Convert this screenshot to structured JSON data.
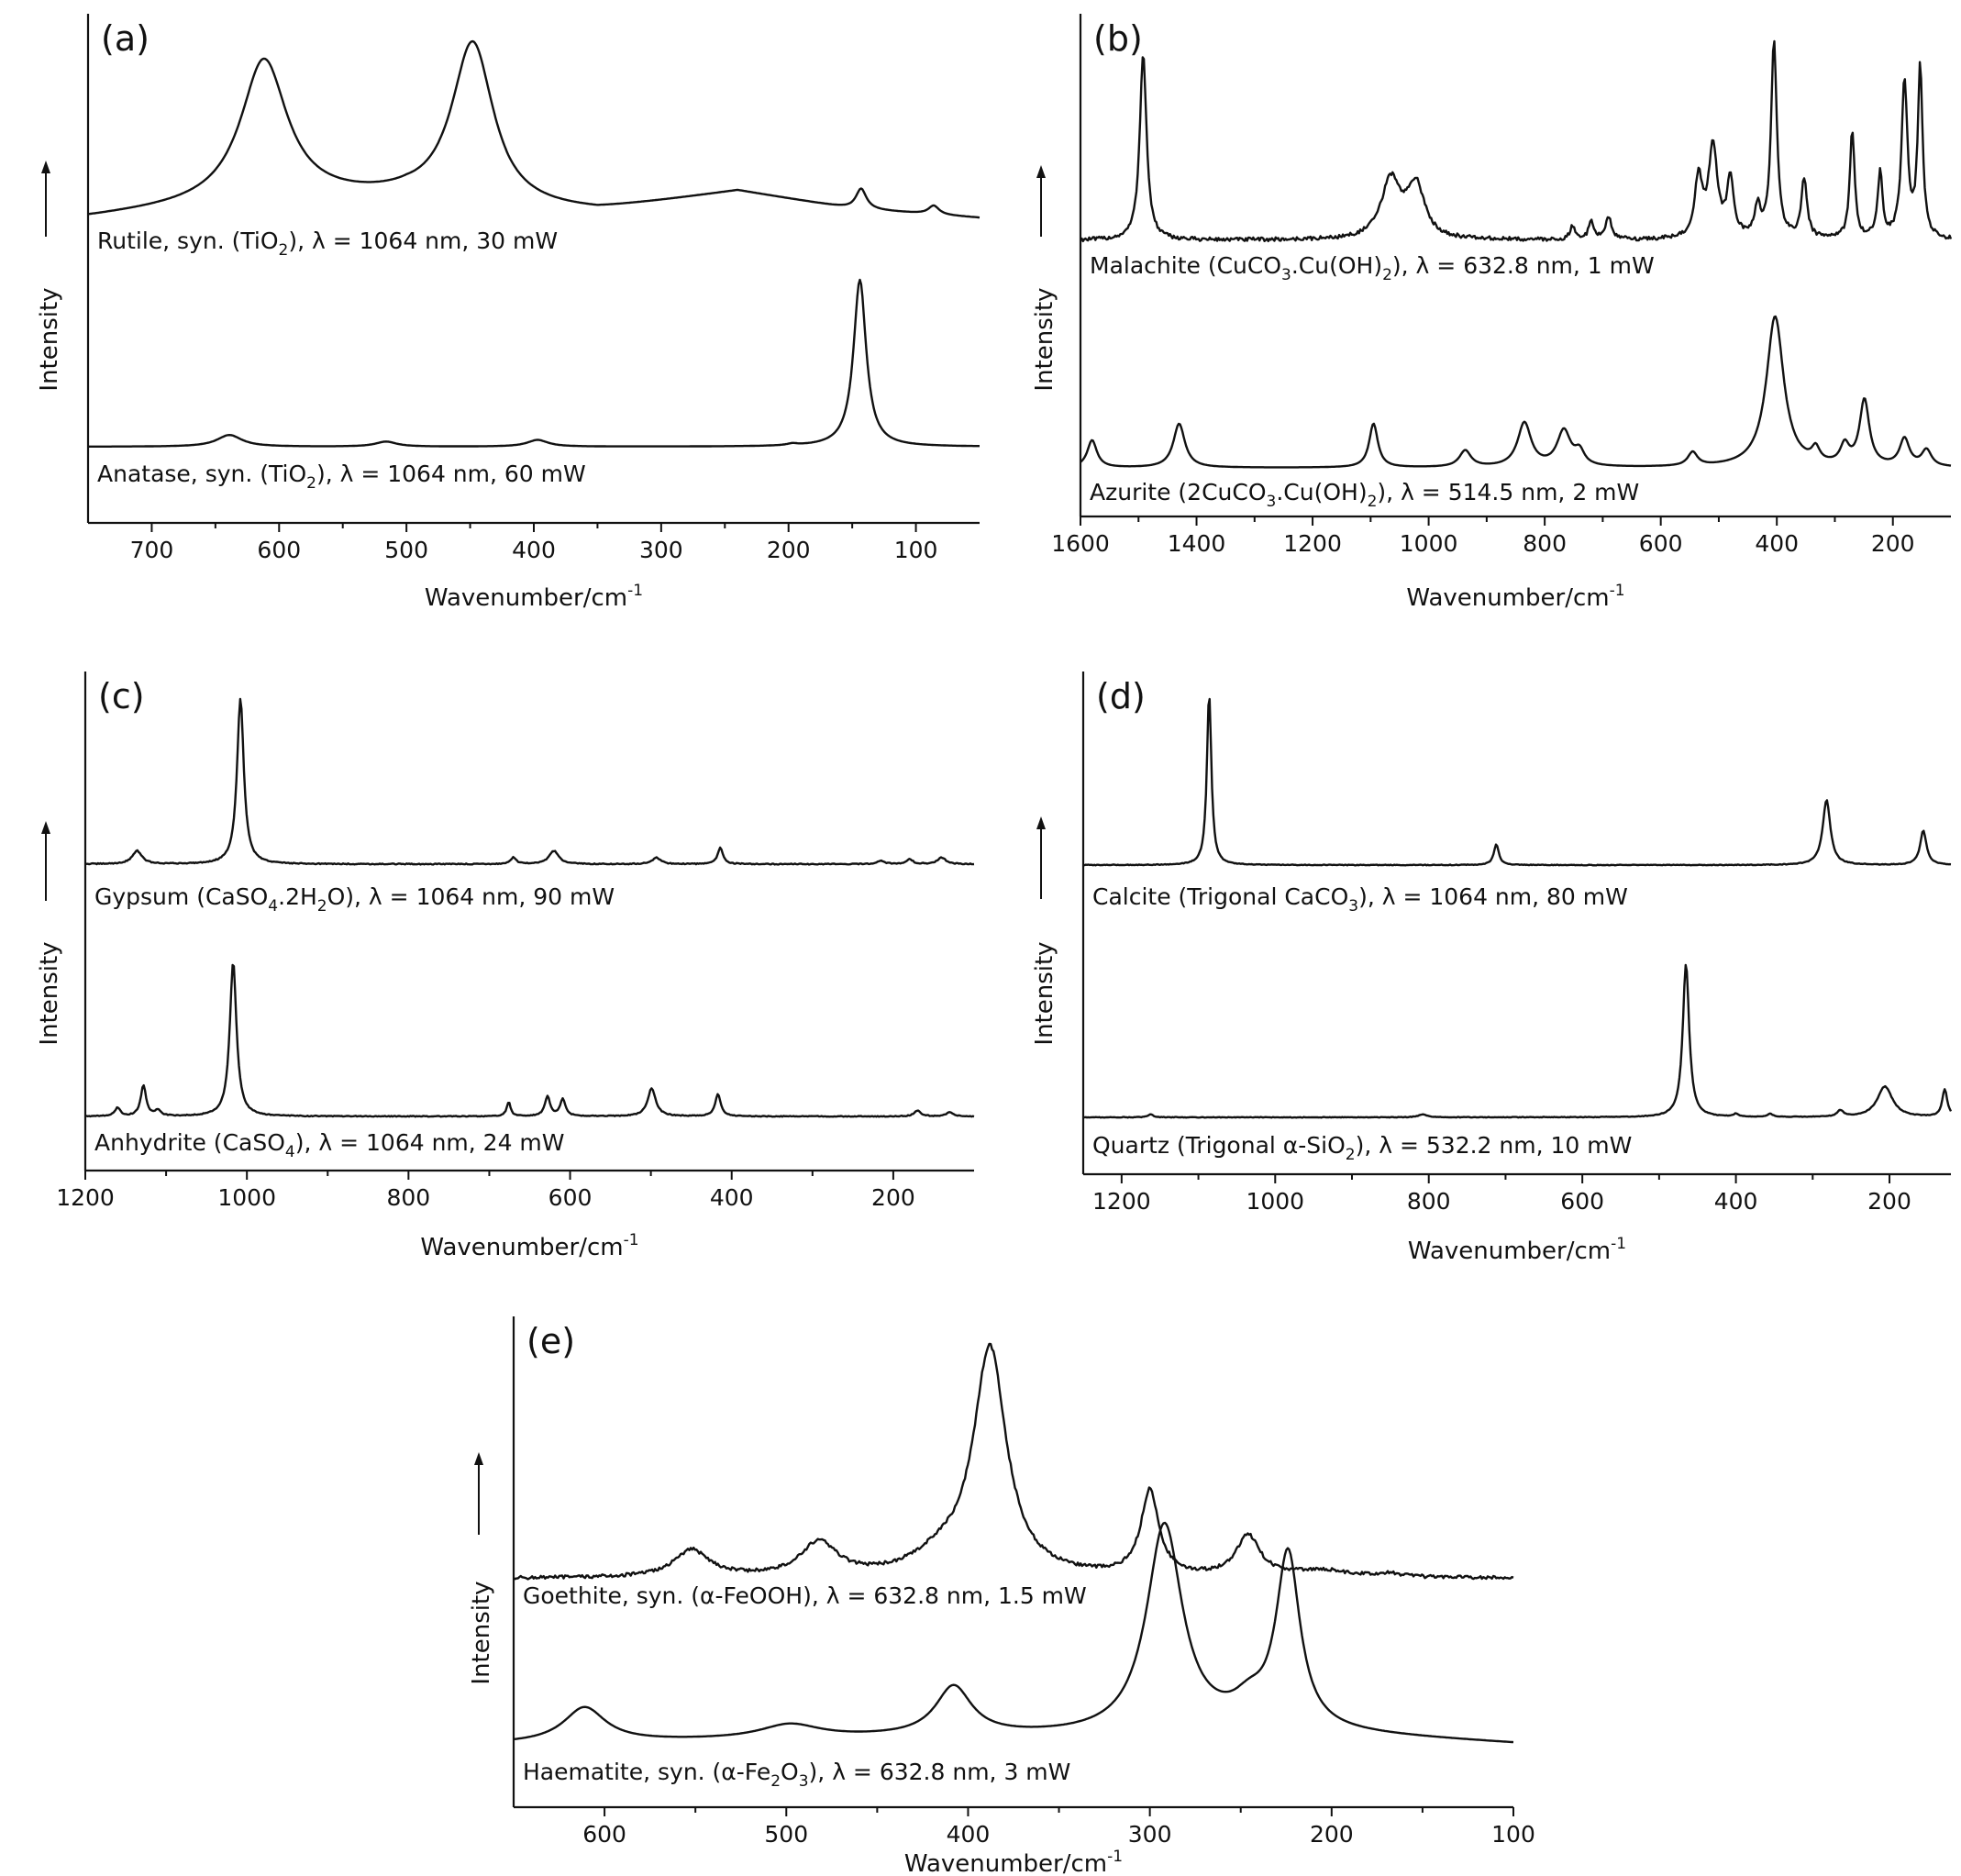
{
  "chart_data": [
    {
      "panel": "(a)",
      "type": "line",
      "xlabel": "Wavenumber/cm",
      "xlabel_sup": "-1",
      "ylabel": "Intensity",
      "xlim": [
        750,
        50
      ],
      "xticks": [
        700,
        600,
        500,
        400,
        300,
        200,
        100
      ],
      "grid": false,
      "series": [
        {
          "label_parts": [
            {
              "t": "Rutile, syn. (TiO"
            },
            {
              "t": "2",
              "s": "sub"
            },
            {
              "t": "), λ = 1064 nm, 30 mW"
            }
          ],
          "baseline": 0.68,
          "noise": 0,
          "background": [
            [
              750,
              0.0
            ],
            [
              600,
              0.06
            ],
            [
              500,
              0.06
            ],
            [
              420,
              0.02
            ],
            [
              350,
              0.02
            ],
            [
              240,
              0.09
            ],
            [
              150,
              0.03
            ],
            [
              50,
              0.0
            ]
          ],
          "peaks": [
            [
              612,
              0.48,
              22
            ],
            [
              448,
              0.56,
              20
            ],
            [
              143,
              0.07,
              5
            ],
            [
              86,
              0.03,
              5
            ]
          ]
        },
        {
          "label_parts": [
            {
              "t": "Anatase, syn. (TiO"
            },
            {
              "t": "2",
              "s": "sub"
            },
            {
              "t": "), λ = 1064 nm, 60 mW"
            }
          ],
          "baseline": 0.0,
          "noise": 0,
          "background": [],
          "peaks": [
            [
              639,
              0.07,
              12
            ],
            [
              516,
              0.03,
              10
            ],
            [
              397,
              0.04,
              10
            ],
            [
              197,
              0.01,
              5
            ],
            [
              144,
              1.0,
              6
            ]
          ]
        }
      ]
    },
    {
      "panel": "(b)",
      "type": "line",
      "xlabel": "Wavenumber/cm",
      "xlabel_sup": "-1",
      "ylabel": "Intensity",
      "xlim": [
        1600,
        100
      ],
      "xticks": [
        1600,
        1400,
        1200,
        1000,
        800,
        600,
        400,
        200
      ],
      "grid": false,
      "series": [
        {
          "label_parts": [
            {
              "t": "Malachite (CuCO"
            },
            {
              "t": "3",
              "s": "sub"
            },
            {
              "t": ".Cu(OH)"
            },
            {
              "t": "2",
              "s": "sub"
            },
            {
              "t": "), λ = 632.8 nm, 1 mW"
            }
          ],
          "baseline": 0.58,
          "noise": 0.012,
          "background": [],
          "peaks": [
            [
              1492,
              0.57,
              7
            ],
            [
              1065,
              0.18,
              20
            ],
            [
              1022,
              0.16,
              18
            ],
            [
              752,
              0.04,
              5
            ],
            [
              720,
              0.06,
              5
            ],
            [
              690,
              0.07,
              6
            ],
            [
              535,
              0.18,
              8
            ],
            [
              510,
              0.28,
              9
            ],
            [
              480,
              0.18,
              7
            ],
            [
              433,
              0.09,
              6
            ],
            [
              405,
              0.6,
              6
            ],
            [
              353,
              0.18,
              6
            ],
            [
              270,
              0.33,
              5
            ],
            [
              222,
              0.2,
              5
            ],
            [
              180,
              0.48,
              6
            ],
            [
              153,
              0.52,
              5
            ]
          ]
        },
        {
          "label_parts": [
            {
              "t": "Azurite (2CuCO"
            },
            {
              "t": "3",
              "s": "sub"
            },
            {
              "t": ".Cu(OH)"
            },
            {
              "t": "2",
              "s": "sub"
            },
            {
              "t": "), λ = 514.5 nm, 2 mW"
            }
          ],
          "baseline": 0.0,
          "noise": 0,
          "background": [],
          "peaks": [
            [
              1580,
              0.1,
              10
            ],
            [
              1430,
              0.16,
              12
            ],
            [
              1095,
              0.16,
              9
            ],
            [
              937,
              0.06,
              12
            ],
            [
              835,
              0.16,
              14
            ],
            [
              767,
              0.13,
              14
            ],
            [
              740,
              0.05,
              10
            ],
            [
              545,
              0.05,
              10
            ],
            [
              403,
              0.55,
              18
            ],
            [
              333,
              0.05,
              8
            ],
            [
              283,
              0.07,
              9
            ],
            [
              249,
              0.24,
              10
            ],
            [
              180,
              0.1,
              10
            ],
            [
              142,
              0.06,
              10
            ]
          ]
        }
      ]
    },
    {
      "panel": "(c)",
      "type": "line",
      "xlabel": "Wavenumber/cm",
      "xlabel_sup": "-1",
      "ylabel": "Intensity",
      "xlim": [
        1200,
        100
      ],
      "xticks": [
        1200,
        1000,
        800,
        600,
        400,
        200
      ],
      "grid": false,
      "series": [
        {
          "label_parts": [
            {
              "t": "Gypsum (CaSO"
            },
            {
              "t": "4",
              "s": "sub"
            },
            {
              "t": ".2H"
            },
            {
              "t": "2",
              "s": "sub"
            },
            {
              "t": "O), λ = 1064 nm, 90 mW"
            }
          ],
          "baseline": 0.54,
          "noise": 0.003,
          "background": [],
          "peaks": [
            [
              1136,
              0.04,
              7
            ],
            [
              1008,
              0.5,
              5
            ],
            [
              670,
              0.02,
              4
            ],
            [
              620,
              0.04,
              7
            ],
            [
              493,
              0.02,
              6
            ],
            [
              414,
              0.05,
              4
            ],
            [
              215,
              0.01,
              5
            ],
            [
              180,
              0.015,
              5
            ],
            [
              140,
              0.02,
              6
            ]
          ]
        },
        {
          "label_parts": [
            {
              "t": "Anhydrite (CaSO"
            },
            {
              "t": "4",
              "s": "sub"
            },
            {
              "t": "), λ = 1064 nm, 24 mW"
            }
          ],
          "baseline": 0.0,
          "noise": 0.003,
          "background": [],
          "peaks": [
            [
              1160,
              0.03,
              4
            ],
            [
              1128,
              0.11,
              4
            ],
            [
              1110,
              0.02,
              4
            ],
            [
              1017,
              0.55,
              5
            ],
            [
              676,
              0.05,
              3
            ],
            [
              628,
              0.07,
              4
            ],
            [
              609,
              0.06,
              4
            ],
            [
              499,
              0.1,
              6
            ],
            [
              417,
              0.08,
              4
            ],
            [
              170,
              0.02,
              5
            ],
            [
              130,
              0.015,
              5
            ]
          ]
        }
      ]
    },
    {
      "panel": "(d)",
      "type": "line",
      "xlabel": "Wavenumber/cm",
      "xlabel_sup": "-1",
      "ylabel": "Intensity",
      "xlim": [
        1250,
        120
      ],
      "xticks": [
        1200,
        1000,
        800,
        600,
        400,
        200
      ],
      "grid": false,
      "series": [
        {
          "label_parts": [
            {
              "t": "Calcite (Trigonal CaCO"
            },
            {
              "t": "3",
              "s": "sub"
            },
            {
              "t": "), λ = 1064 nm, 80 mW"
            }
          ],
          "baseline": 0.54,
          "noise": 0.002,
          "background": [],
          "peaks": [
            [
              1086,
              0.5,
              3.5
            ],
            [
              712,
              0.06,
              4
            ],
            [
              282,
              0.19,
              6
            ],
            [
              156,
              0.1,
              5
            ]
          ]
        },
        {
          "label_parts": [
            {
              "t": "Quartz (Trigonal α-SiO"
            },
            {
              "t": "2",
              "s": "sub"
            },
            {
              "t": "), λ = 532.2 nm, 10 mW"
            }
          ],
          "baseline": 0.0,
          "noise": 0.002,
          "background": [],
          "peaks": [
            [
              1162,
              0.01,
              4
            ],
            [
              808,
              0.01,
              6
            ],
            [
              465,
              0.5,
              5
            ],
            [
              400,
              0.01,
              4
            ],
            [
              355,
              0.01,
              4
            ],
            [
              264,
              0.02,
              5
            ],
            [
              206,
              0.1,
              12
            ],
            [
              128,
              0.09,
              4
            ]
          ]
        }
      ]
    },
    {
      "panel": "(e)",
      "type": "line",
      "xlabel": "Wavenumber/cm",
      "xlabel_sup": "-1",
      "ylabel": "Intensity",
      "xlim": [
        650,
        100
      ],
      "xticks": [
        600,
        500,
        400,
        300,
        200,
        100
      ],
      "grid": false,
      "series": [
        {
          "label_parts": [
            {
              "t": "Goethite, syn. (α-FeOOH), λ = 632.8 nm, 1.5 mW"
            }
          ],
          "baseline": 0.55,
          "noise": 0.01,
          "background": [],
          "peaks": [
            [
              552,
              0.08,
              12
            ],
            [
              482,
              0.1,
              12
            ],
            [
              415,
              0.05,
              18
            ],
            [
              388,
              0.67,
              11
            ],
            [
              300,
              0.25,
              6
            ],
            [
              246,
              0.12,
              8
            ],
            [
              205,
              0.02,
              18
            ],
            [
              168,
              0.01,
              10
            ]
          ]
        },
        {
          "label_parts": [
            {
              "t": "Haematite, syn. (α-Fe"
            },
            {
              "t": "2",
              "s": "sub"
            },
            {
              "t": "O"
            },
            {
              "t": "3",
              "s": "sub"
            },
            {
              "t": "), λ = 632.8 nm, 3 mW"
            }
          ],
          "baseline": 0.0,
          "noise": 0,
          "background": [
            [
              650,
              0.0
            ],
            [
              400,
              0.02
            ],
            [
              300,
              0.02
            ],
            [
              250,
              0.04
            ],
            [
              100,
              0.0
            ]
          ],
          "peaks": [
            [
              611,
              0.1,
              14
            ],
            [
              498,
              0.04,
              20
            ],
            [
              408,
              0.14,
              12
            ],
            [
              292,
              0.6,
              12
            ],
            [
              245,
              0.05,
              10
            ],
            [
              224,
              0.5,
              8
            ]
          ]
        }
      ]
    }
  ]
}
